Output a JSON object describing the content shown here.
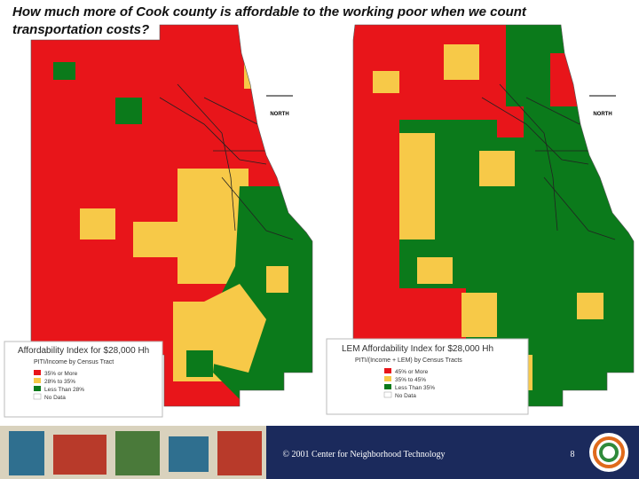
{
  "header": {
    "title": [
      "How much more of Cook county is affordable to the working poor when we count",
      "transportation costs?"
    ]
  },
  "maps": [
    {
      "north_label": "NORTH",
      "legend": {
        "title": "Affordability Index for $28,000 Hh",
        "subtitle": "PITI/Income by Census Tract",
        "items": [
          "35% or More",
          "28% to 35%",
          "Less Than 28%",
          "No Data"
        ]
      }
    },
    {
      "north_label": "NORTH",
      "legend": {
        "title": "LEM Affordability Index for $28,000 Hh",
        "subtitle": "PITI/(Income + LEM) by Census Tracts",
        "items": [
          "45% or More",
          "35% to 45%",
          "Less Than 35%",
          "No Data"
        ]
      }
    }
  ],
  "footer": {
    "copyright": "© 2001 Center for Neighborhood Technology",
    "page_number": "8"
  }
}
